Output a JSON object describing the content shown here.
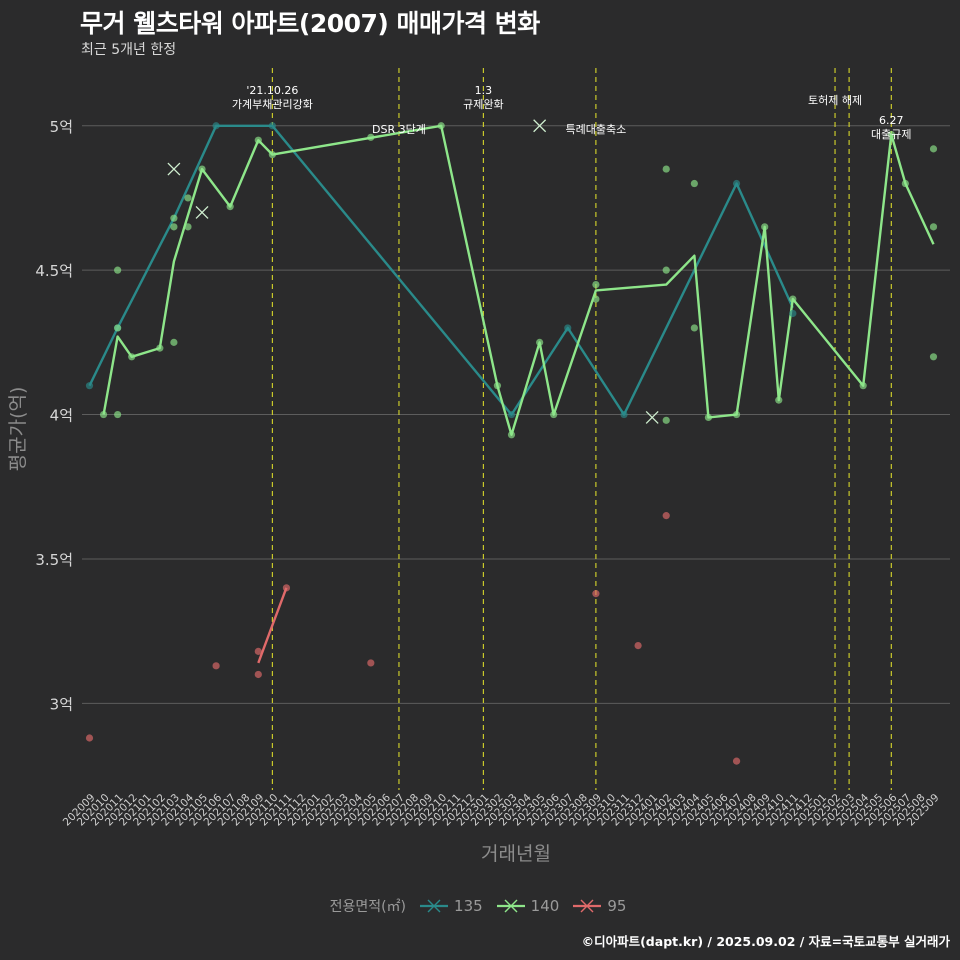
{
  "header": {
    "title": "무거 웰츠타워 아파트(2007) 매매가격 변화",
    "subtitle": "최근 5개년 한정"
  },
  "caption": "©디아파트(dapt.kr) / 2025.09.02 / 자료=국토교통부 실거래가",
  "legend": {
    "title": "전용면적(㎡)"
  },
  "chart_data": {
    "type": "line",
    "xlabel": "거래년월",
    "ylabel": "평균가(억)",
    "ylim": [
      2.7,
      5.2
    ],
    "yticks": [
      3,
      3.5,
      4,
      4.5,
      5
    ],
    "ytick_labels": [
      "3억",
      "3.5억",
      "4억",
      "4.5억",
      "5억"
    ],
    "grid": true,
    "legend_position": "bottom",
    "x_categories": [
      "202009",
      "202010",
      "202011",
      "202012",
      "202101",
      "202102",
      "202103",
      "202104",
      "202105",
      "202106",
      "202107",
      "202108",
      "202109",
      "202110",
      "202111",
      "202112",
      "202201",
      "202202",
      "202203",
      "202204",
      "202205",
      "202206",
      "202207",
      "202208",
      "202209",
      "202210",
      "202211",
      "202212",
      "202301",
      "202302",
      "202303",
      "202304",
      "202305",
      "202306",
      "202307",
      "202308",
      "202309",
      "202310",
      "202311",
      "202312",
      "202401",
      "202402",
      "202403",
      "202404",
      "202405",
      "202406",
      "202407",
      "202408",
      "202409",
      "202410",
      "202411",
      "202412",
      "202501",
      "202502",
      "202503",
      "202504",
      "202505",
      "202506",
      "202507",
      "202508",
      "202509"
    ],
    "series": [
      {
        "name": "135",
        "color": "#2a8a8a",
        "line": [
          [
            "202009",
            4.1
          ],
          [
            "202011",
            4.3
          ],
          [
            "202103",
            4.68
          ],
          [
            "202106",
            5.0
          ],
          [
            "202110",
            5.0
          ],
          [
            "202303",
            4.0
          ],
          [
            "202307",
            4.3
          ],
          [
            "202311",
            4.0
          ],
          [
            "202407",
            4.8
          ],
          [
            "202411",
            4.37
          ]
        ],
        "points": [
          [
            "202009",
            4.1
          ],
          [
            "202011",
            4.3
          ],
          [
            "202106",
            5.0
          ],
          [
            "202110",
            5.0
          ],
          [
            "202303",
            4.0
          ],
          [
            "202307",
            4.3
          ],
          [
            "202311",
            4.0
          ],
          [
            "202407",
            4.8
          ],
          [
            "202411",
            4.35
          ]
        ],
        "cancelled": []
      },
      {
        "name": "140",
        "color": "#8ee68a",
        "line": [
          [
            "202010",
            4.0
          ],
          [
            "202011",
            4.27
          ],
          [
            "202012",
            4.2
          ],
          [
            "202102",
            4.23
          ],
          [
            "202103",
            4.53
          ],
          [
            "202105",
            4.85
          ],
          [
            "202107",
            4.72
          ],
          [
            "202109",
            4.95
          ],
          [
            "202110",
            4.9
          ],
          [
            "202210",
            5.0
          ],
          [
            "202302",
            4.1
          ],
          [
            "202303",
            3.93
          ],
          [
            "202305",
            4.25
          ],
          [
            "202306",
            4.0
          ],
          [
            "202309",
            4.43
          ],
          [
            "202402",
            4.45
          ],
          [
            "202404",
            4.55
          ],
          [
            "202405",
            3.99
          ],
          [
            "202407",
            4.0
          ],
          [
            "202409",
            4.65
          ],
          [
            "202410",
            4.05
          ],
          [
            "202411",
            4.4
          ],
          [
            "202504",
            4.1
          ],
          [
            "202506",
            4.97
          ],
          [
            "202507",
            4.8
          ],
          [
            "202509",
            4.59
          ]
        ],
        "points": [
          [
            "202010",
            4.0
          ],
          [
            "202011",
            4.5
          ],
          [
            "202011",
            4.3
          ],
          [
            "202011",
            4.0
          ],
          [
            "202012",
            4.2
          ],
          [
            "202102",
            4.23
          ],
          [
            "202103",
            4.68
          ],
          [
            "202103",
            4.65
          ],
          [
            "202103",
            4.25
          ],
          [
            "202104",
            4.75
          ],
          [
            "202104",
            4.65
          ],
          [
            "202105",
            4.85
          ],
          [
            "202107",
            4.72
          ],
          [
            "202109",
            4.95
          ],
          [
            "202110",
            4.9
          ],
          [
            "202205",
            4.96
          ],
          [
            "202210",
            5.0
          ],
          [
            "202302",
            4.1
          ],
          [
            "202303",
            3.93
          ],
          [
            "202305",
            4.25
          ],
          [
            "202306",
            4.0
          ],
          [
            "202309",
            4.45
          ],
          [
            "202309",
            4.4
          ],
          [
            "202402",
            4.85
          ],
          [
            "202402",
            4.5
          ],
          [
            "202402",
            3.98
          ],
          [
            "202404",
            4.8
          ],
          [
            "202404",
            4.3
          ],
          [
            "202405",
            3.99
          ],
          [
            "202407",
            4.0
          ],
          [
            "202409",
            4.65
          ],
          [
            "202410",
            4.05
          ],
          [
            "202411",
            4.4
          ],
          [
            "202504",
            4.1
          ],
          [
            "202506",
            4.97
          ],
          [
            "202507",
            4.8
          ],
          [
            "202509",
            4.92
          ],
          [
            "202509",
            4.65
          ],
          [
            "202509",
            4.2
          ]
        ],
        "cancelled": [
          [
            "202103",
            4.85
          ],
          [
            "202105",
            4.7
          ],
          [
            "202305",
            5.0
          ],
          [
            "202401",
            3.99
          ]
        ]
      },
      {
        "name": "95",
        "color": "#e06a6a",
        "line": [
          [
            "202109",
            3.14
          ],
          [
            "202111",
            3.4
          ]
        ],
        "points": [
          [
            "202009",
            2.88
          ],
          [
            "202106",
            3.13
          ],
          [
            "202109",
            3.18
          ],
          [
            "202109",
            3.1
          ],
          [
            "202111",
            3.4
          ],
          [
            "202205",
            3.14
          ],
          [
            "202309",
            3.38
          ],
          [
            "202312",
            3.2
          ],
          [
            "202402",
            3.65
          ],
          [
            "202407",
            2.8
          ]
        ],
        "cancelled": []
      }
    ],
    "annotations": [
      {
        "x": "202110",
        "lines": [
          "'21.10.26",
          "가계부채관리강화"
        ]
      },
      {
        "x": "202207",
        "lines": [
          "DSR 3단계"
        ]
      },
      {
        "x": "202301",
        "lines": [
          "1.3",
          "규제완화"
        ]
      },
      {
        "x": "202309",
        "lines": [
          "특례대출축소"
        ]
      },
      {
        "x": "202502",
        "lines": []
      },
      {
        "x": "202503",
        "lines": [
          "토허제 해제"
        ]
      },
      {
        "x": "202506",
        "lines": [
          "6.27",
          "대출규제"
        ]
      }
    ]
  }
}
